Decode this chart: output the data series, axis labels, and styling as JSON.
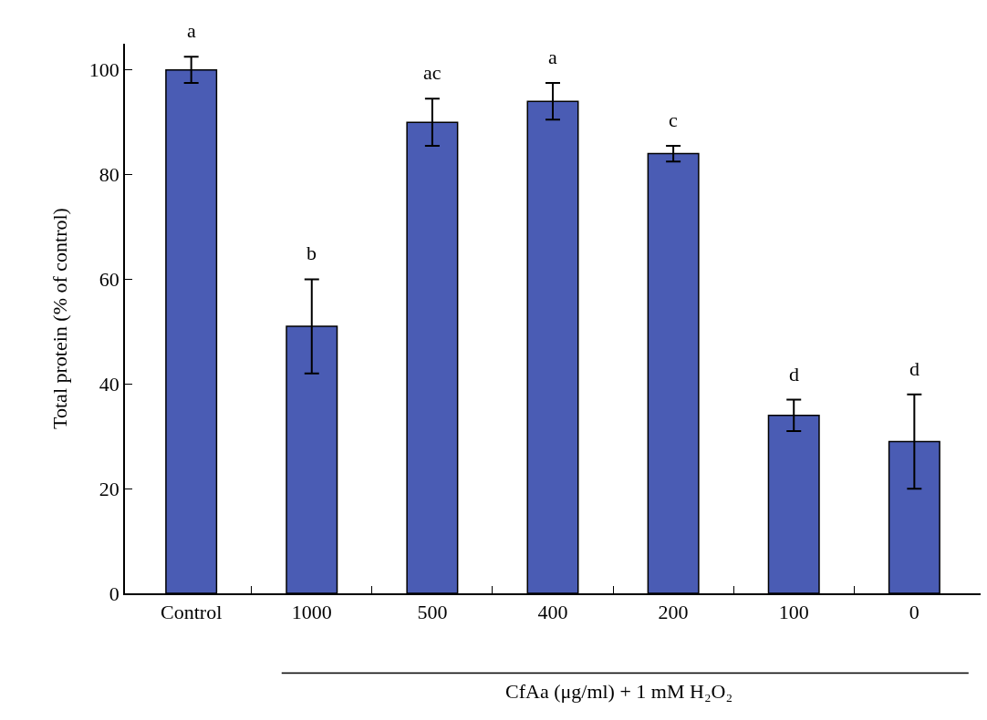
{
  "chart_data": {
    "type": "bar",
    "ylabel": "Total protein (% of control)",
    "xlabel": "CfAa (μg/ml) + 1 mM H₂O₂",
    "categories": [
      "Control",
      "1000",
      "500",
      "400",
      "200",
      "100",
      "0"
    ],
    "values": [
      100,
      51,
      90,
      94,
      84,
      34,
      29
    ],
    "errors": [
      2.5,
      9,
      4.5,
      3.5,
      1.5,
      3,
      9
    ],
    "color": "#4a5cb4",
    "ylim": [
      0,
      105
    ],
    "yticks": [
      0,
      20,
      40,
      60,
      80,
      100
    ],
    "grid": false,
    "annotations": [
      "a",
      "b",
      "ac",
      "a",
      "c",
      "d",
      "d"
    ]
  }
}
